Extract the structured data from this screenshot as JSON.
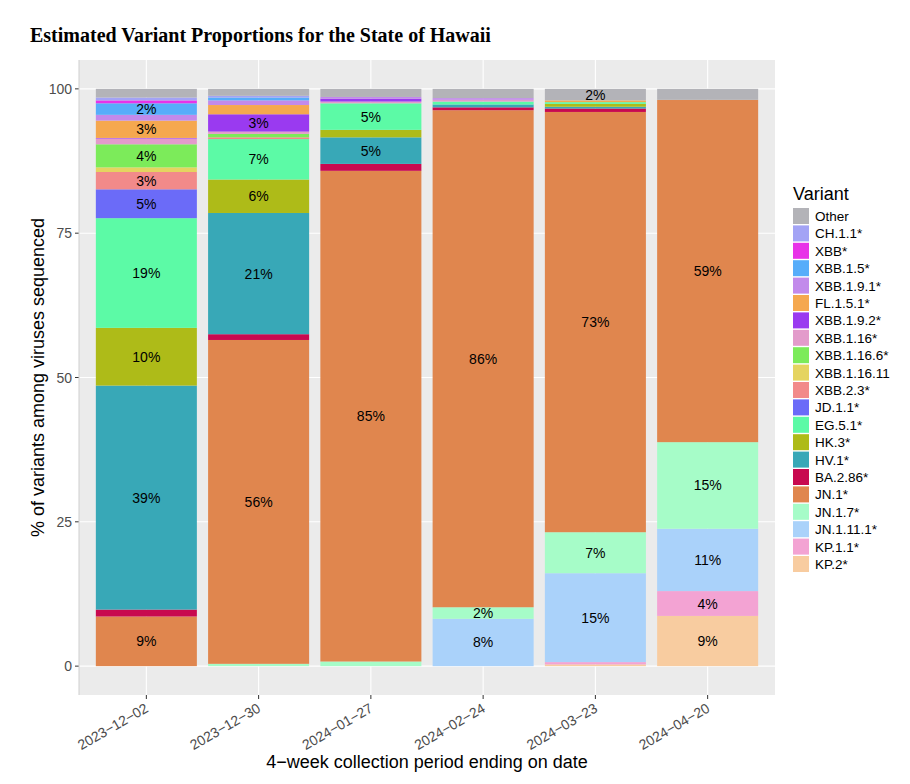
{
  "chart_data": {
    "type": "bar",
    "title": "Estimated Variant Proportions for the State of Hawaii",
    "x_label": "4−week collection period ending on date",
    "y_label": "% of variants among viruses sequenced",
    "legend_title": "Variant",
    "categories": [
      "2023−12−02",
      "2023−12−30",
      "2024−01−27",
      "2024−02−24",
      "2024−03−23",
      "2024−04−20"
    ],
    "stacked": true,
    "data_labels": true,
    "grid": true,
    "legend": "right",
    "ylim": [
      -5,
      105
    ],
    "yticks": [
      0,
      25,
      50,
      75,
      100
    ],
    "series": [
      {
        "name": "Other",
        "color": "#b3b3b8",
        "values": [
          1.5,
          1.2,
          1.4,
          1.6,
          2,
          1.9
        ],
        "value_labels": [
          null,
          null,
          null,
          null,
          "2%",
          null
        ]
      },
      {
        "name": "CH.1.1*",
        "color": "#a3a3f5",
        "values": [
          0.5,
          0.3,
          0,
          0,
          0,
          0
        ],
        "value_labels": [
          null,
          null,
          null,
          null,
          null,
          null
        ]
      },
      {
        "name": "XBB*",
        "color": "#e832e8",
        "values": [
          0.5,
          0,
          0,
          0,
          0,
          0
        ],
        "value_labels": [
          null,
          null,
          null,
          null,
          null,
          null
        ]
      },
      {
        "name": "XBB.1.5*",
        "color": "#57adfa",
        "values": [
          2,
          0.5,
          0,
          0,
          0,
          0
        ],
        "value_labels": [
          "2%",
          null,
          null,
          null,
          null,
          null
        ]
      },
      {
        "name": "XBB.1.9.1*",
        "color": "#c28aeb",
        "values": [
          1,
          0.8,
          0.3,
          0.3,
          0,
          0
        ],
        "value_labels": [
          null,
          null,
          null,
          null,
          null,
          null
        ]
      },
      {
        "name": "FL.1.5.1*",
        "color": "#f5a84f",
        "values": [
          3,
          1.6,
          0,
          0,
          0.3,
          0
        ],
        "value_labels": [
          "3%",
          null,
          null,
          null,
          null,
          null
        ]
      },
      {
        "name": "XBB.1.9.2*",
        "color": "#9a3af0",
        "values": [
          0.1,
          3,
          0.5,
          0,
          0,
          0
        ],
        "value_labels": [
          null,
          "3%",
          null,
          null,
          null,
          null
        ]
      },
      {
        "name": "XBB.1.16*",
        "color": "#e39bcb",
        "values": [
          1,
          0.4,
          0.3,
          0.3,
          0,
          0
        ],
        "value_labels": [
          null,
          null,
          null,
          null,
          null,
          null
        ]
      },
      {
        "name": "XBB.1.16.6*",
        "color": "#7ceb5a",
        "values": [
          4,
          0.6,
          0,
          0,
          0,
          0
        ],
        "value_labels": [
          "4%",
          null,
          null,
          null,
          null,
          null
        ]
      },
      {
        "name": "XBB.1.16.11",
        "color": "#e5d460",
        "values": [
          0.8,
          0,
          0,
          0,
          0,
          0
        ],
        "value_labels": [
          null,
          null,
          null,
          null,
          null,
          null
        ]
      },
      {
        "name": "XBB.2.3*",
        "color": "#f28a8a",
        "values": [
          3,
          0.3,
          0,
          0,
          0,
          0
        ],
        "value_labels": [
          "3%",
          null,
          null,
          null,
          null,
          null
        ]
      },
      {
        "name": "JD.1.1*",
        "color": "#6b6bf8",
        "values": [
          5,
          0,
          0,
          0,
          0,
          0
        ],
        "value_labels": [
          "5%",
          null,
          null,
          null,
          null,
          null
        ]
      },
      {
        "name": "EG.5.1*",
        "color": "#5cfaa6",
        "values": [
          19,
          7,
          4.6,
          0.5,
          0.3,
          0
        ],
        "value_labels": [
          "19%",
          "7%",
          "5%",
          null,
          null,
          null
        ]
      },
      {
        "name": "HK.3*",
        "color": "#aebb18",
        "values": [
          10,
          5.8,
          1.3,
          0,
          0.5,
          0
        ],
        "value_labels": [
          "10%",
          "6%",
          null,
          null,
          null,
          null
        ]
      },
      {
        "name": "HV.1*",
        "color": "#38a8b7",
        "values": [
          38.8,
          21,
          4.6,
          0.5,
          0.3,
          0
        ],
        "value_labels": [
          "39%",
          "21%",
          "5%",
          null,
          null,
          null
        ]
      },
      {
        "name": "BA.2.86*",
        "color": "#c8094f",
        "values": [
          1.2,
          1,
          1.2,
          0.5,
          0.6,
          0
        ],
        "value_labels": [
          null,
          null,
          null,
          null,
          null,
          null
        ]
      },
      {
        "name": "JN.1*",
        "color": "#e0864e",
        "values": [
          8.6,
          56.1,
          85,
          86.1,
          72.8,
          59.3
        ],
        "value_labels": [
          "9%",
          "56%",
          "85%",
          "86%",
          "73%",
          "59%"
        ]
      },
      {
        "name": "JN.1.7*",
        "color": "#a6fcc8",
        "values": [
          0,
          0.4,
          0.8,
          2,
          7.1,
          15
        ],
        "value_labels": [
          null,
          null,
          null,
          "2%",
          "7%",
          "15%"
        ]
      },
      {
        "name": "JN.1.11.1*",
        "color": "#aad2fa",
        "values": [
          0,
          0,
          0,
          8.2,
          15.4,
          10.8
        ],
        "value_labels": [
          null,
          null,
          null,
          "8%",
          "15%",
          "11%"
        ]
      },
      {
        "name": "KP.1.1*",
        "color": "#f3a3d3",
        "values": [
          0,
          0,
          0,
          0,
          0.4,
          4.3
        ],
        "value_labels": [
          null,
          null,
          null,
          null,
          null,
          "4%"
        ]
      },
      {
        "name": "KP.2*",
        "color": "#f8cca0",
        "values": [
          0,
          0,
          0,
          0,
          0.3,
          8.7
        ],
        "value_labels": [
          null,
          null,
          null,
          null,
          null,
          "9%"
        ]
      }
    ]
  }
}
